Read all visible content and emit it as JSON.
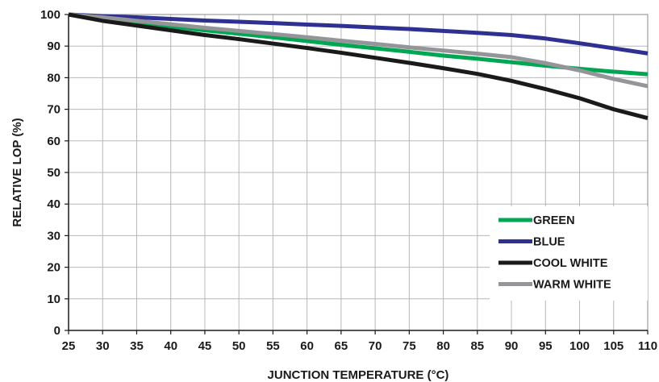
{
  "chart_data": {
    "type": "line",
    "title": "",
    "xlabel": "JUNCTION TEMPERATURE (°C)",
    "ylabel": "RELATIVE LOP (%)",
    "x": [
      25,
      30,
      35,
      40,
      45,
      50,
      55,
      60,
      65,
      70,
      75,
      80,
      85,
      90,
      95,
      100,
      105,
      110
    ],
    "xticks": [
      "25",
      "30",
      "35",
      "40",
      "45",
      "50",
      "55",
      "60",
      "65",
      "70",
      "75",
      "80",
      "85",
      "90",
      "95",
      "100",
      "105",
      "110"
    ],
    "yticks": [
      "0",
      "10",
      "20",
      "30",
      "40",
      "50",
      "60",
      "70",
      "80",
      "90",
      "100"
    ],
    "xlim": [
      25,
      110
    ],
    "ylim": [
      0,
      100
    ],
    "grid": true,
    "legend_position": "bottom-right",
    "series": [
      {
        "name": "GREEN",
        "color": "#00a651",
        "values": [
          100,
          98.8,
          97.5,
          96.2,
          95.0,
          93.9,
          92.8,
          91.6,
          90.4,
          89.3,
          88.2,
          87.0,
          86.0,
          84.9,
          83.8,
          82.8,
          81.9,
          81.1
        ]
      },
      {
        "name": "BLUE",
        "color": "#2e3192",
        "values": [
          100,
          99.5,
          99.1,
          98.6,
          98.1,
          97.7,
          97.3,
          96.8,
          96.4,
          95.9,
          95.4,
          94.8,
          94.2,
          93.5,
          92.4,
          90.9,
          89.3,
          87.7
        ]
      },
      {
        "name": "COOL WHITE",
        "color": "#1a1a1a",
        "values": [
          100,
          98.0,
          96.5,
          95.0,
          93.5,
          92.2,
          90.8,
          89.4,
          87.9,
          86.3,
          84.7,
          83.0,
          81.2,
          79.0,
          76.4,
          73.5,
          70.0,
          67.2
        ]
      },
      {
        "name": "WARM WHITE",
        "color": "#939598",
        "values": [
          100,
          99.1,
          98.0,
          96.9,
          95.8,
          94.8,
          93.8,
          92.8,
          91.7,
          90.7,
          89.6,
          88.6,
          87.6,
          86.5,
          84.6,
          82.3,
          79.6,
          77.3
        ]
      }
    ]
  }
}
